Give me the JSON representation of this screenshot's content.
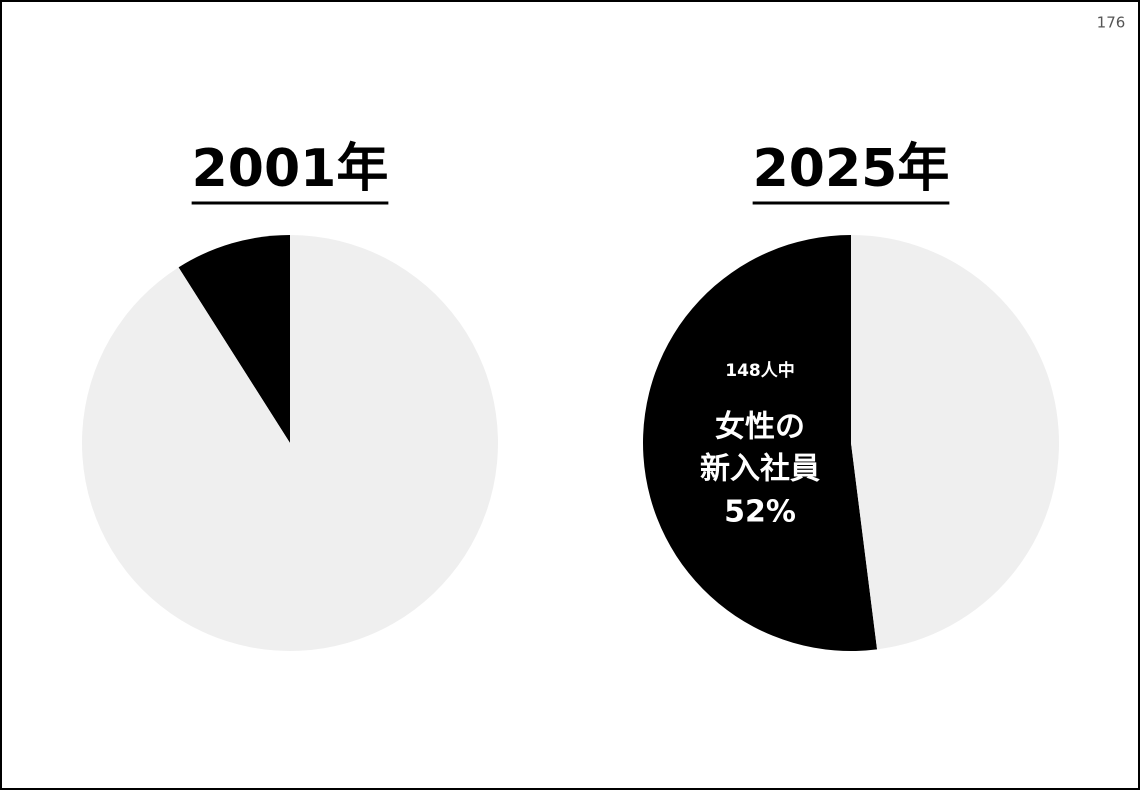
{
  "page_number": "176",
  "chart_data": [
    {
      "type": "pie",
      "title": "2001年",
      "values": [
        9,
        91
      ],
      "colors": [
        "#000000",
        "#efefef"
      ],
      "counterclockwise": true
    },
    {
      "type": "pie",
      "title": "2025年",
      "values": [
        52,
        48
      ],
      "value_labels": [
        "52%",
        null
      ],
      "colors": [
        "#000000",
        "#efefef"
      ],
      "counterclockwise": true,
      "annotations": [
        "148人中",
        "女性の",
        "新入社員"
      ]
    }
  ]
}
